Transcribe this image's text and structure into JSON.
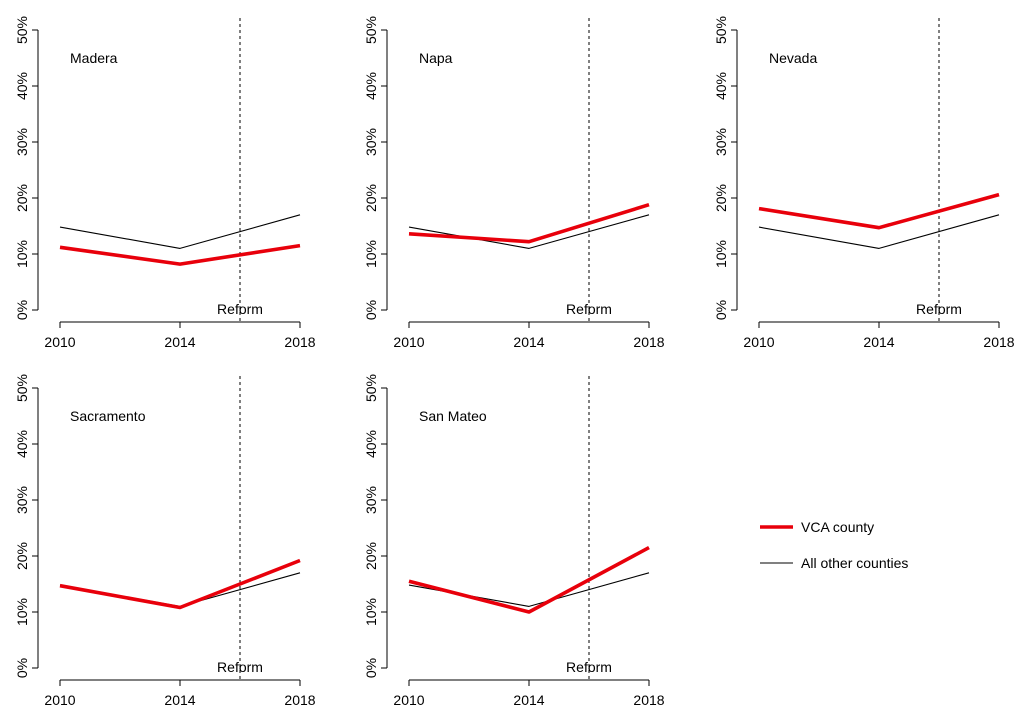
{
  "chart_data": {
    "type": "line",
    "x": [
      2010,
      2014,
      2018
    ],
    "xticks": [
      "2010",
      "2014",
      "2018"
    ],
    "ylim": [
      0,
      50
    ],
    "yticks": [
      "0%",
      "10%",
      "20%",
      "30%",
      "40%",
      "50%"
    ],
    "grid": false,
    "reference_line": {
      "x": 2016,
      "label": "Reform",
      "style": "dashed"
    },
    "colors": {
      "vca": "#e8000b",
      "other": "#000000"
    },
    "legend": {
      "placement": "right",
      "entries": [
        {
          "label": "VCA county",
          "series": "vca"
        },
        {
          "label": "All other counties",
          "series": "other"
        }
      ]
    },
    "panels": [
      {
        "title": "Madera",
        "series": [
          {
            "key": "vca",
            "values": [
              11.2,
              8.2,
              11.5
            ]
          },
          {
            "key": "other",
            "values": [
              14.8,
              11.0,
              17.0
            ]
          }
        ]
      },
      {
        "title": "Napa",
        "series": [
          {
            "key": "vca",
            "values": [
              13.6,
              12.2,
              18.8
            ]
          },
          {
            "key": "other",
            "values": [
              14.8,
              11.0,
              17.0
            ]
          }
        ]
      },
      {
        "title": "Nevada",
        "series": [
          {
            "key": "vca",
            "values": [
              18.1,
              14.7,
              20.6
            ]
          },
          {
            "key": "other",
            "values": [
              14.8,
              11.0,
              17.0
            ]
          }
        ]
      },
      {
        "title": "Sacramento",
        "series": [
          {
            "key": "vca",
            "values": [
              14.7,
              10.8,
              19.2
            ]
          },
          {
            "key": "other",
            "values": [
              14.8,
              11.0,
              17.0
            ]
          }
        ]
      },
      {
        "title": "San Mateo",
        "series": [
          {
            "key": "vca",
            "values": [
              15.5,
              10.0,
              21.5
            ]
          },
          {
            "key": "other",
            "values": [
              14.8,
              11.0,
              17.0
            ]
          }
        ]
      }
    ]
  }
}
